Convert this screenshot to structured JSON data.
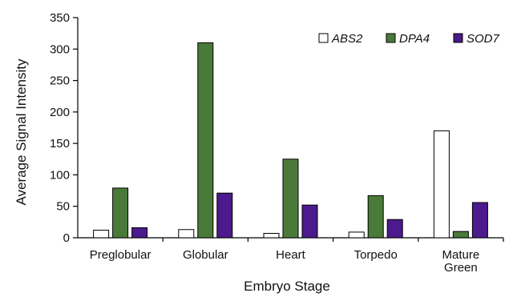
{
  "chart_data": {
    "type": "bar",
    "title": "",
    "xlabel": "Embryo Stage",
    "ylabel": "Average Signal Intensity",
    "ylim": [
      0,
      350
    ],
    "yticks": [
      0,
      50,
      100,
      150,
      200,
      250,
      300,
      350
    ],
    "categories": [
      [
        "Preglobular"
      ],
      [
        "Globular"
      ],
      [
        "Heart"
      ],
      [
        "Torpedo"
      ],
      [
        "Mature",
        "Green"
      ]
    ],
    "series": [
      {
        "name": "ABS2",
        "color": "#ffffff",
        "values": [
          12,
          13,
          7,
          9,
          170
        ]
      },
      {
        "name": "DPA4",
        "color": "#4a7a3a",
        "values": [
          79,
          310,
          125,
          67,
          10
        ]
      },
      {
        "name": "SOD7",
        "color": "#4b1a8c",
        "values": [
          16,
          71,
          52,
          29,
          56
        ]
      }
    ],
    "legend_position": "top-right",
    "grid": false
  }
}
